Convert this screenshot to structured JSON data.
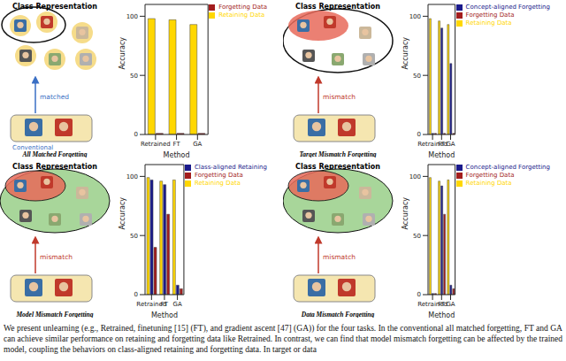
{
  "chart_data": [
    {
      "type": "bar",
      "categories": [
        "Retrained",
        "FT",
        "GA"
      ],
      "x_label": "Method",
      "y_label": "Accuracy",
      "ylim": [
        0,
        110
      ],
      "yticks": [
        0,
        50,
        100
      ],
      "legend": "upper right",
      "series": [
        {
          "name": "Retaining Data",
          "color": "#ffd700",
          "values": [
            98,
            97,
            93
          ]
        },
        {
          "name": "Forgetting Data",
          "color": "#a31d1d",
          "values": [
            1,
            1,
            1
          ]
        }
      ]
    },
    {
      "type": "bar",
      "categories": [
        "Retrained",
        "FT",
        "GA"
      ],
      "x_label": "Method",
      "y_label": "Accuracy",
      "ylim": [
        0,
        110
      ],
      "yticks": [
        0,
        50,
        100
      ],
      "legend": "upper right",
      "series": [
        {
          "name": "Retaining Data",
          "color": "#ffd700",
          "values": [
            98,
            96,
            93
          ]
        },
        {
          "name": "Concept-aligned Forgetting",
          "color": "#1a1a8c",
          "values": [
            1,
            90,
            60
          ]
        },
        {
          "name": "Forgetting Data",
          "color": "#a31d1d",
          "values": [
            1,
            1,
            1
          ]
        }
      ]
    },
    {
      "type": "bar",
      "categories": [
        "Retrained",
        "FT",
        "GA"
      ],
      "x_label": "Method",
      "y_label": "Accuracy",
      "ylim": [
        0,
        110
      ],
      "yticks": [
        0,
        50,
        100
      ],
      "legend": "upper right",
      "series": [
        {
          "name": "Retaining Data",
          "color": "#ffd700",
          "values": [
            99,
            96,
            97
          ]
        },
        {
          "name": "Class-aligned Retaining",
          "color": "#1a1a8c",
          "values": [
            97,
            93,
            8
          ]
        },
        {
          "name": "Forgetting Data",
          "color": "#a31d1d",
          "values": [
            40,
            68,
            5
          ]
        }
      ]
    },
    {
      "type": "bar",
      "categories": [
        "Retrained",
        "FT",
        "GA"
      ],
      "x_label": "Method",
      "y_label": "Accuracy",
      "ylim": [
        0,
        110
      ],
      "yticks": [
        0,
        50,
        100
      ],
      "legend": "upper right",
      "series": [
        {
          "name": "Retaining Data",
          "color": "#ffd700",
          "values": [
            99,
            96,
            97
          ]
        },
        {
          "name": "Concept-aligned Forgetting",
          "color": "#1a1a8c",
          "values": [
            1,
            92,
            8
          ]
        },
        {
          "name": "Forgetting Data",
          "color": "#a31d1d",
          "values": [
            1,
            68,
            5
          ]
        }
      ]
    }
  ],
  "diagrams": [
    {
      "title": "Class Representation",
      "relation": "matched",
      "label": "Conventional",
      "name": "All Matched Forgetting"
    },
    {
      "title": "Class Representation",
      "relation": "mismatch",
      "name": "Target Mismatch Forgetting"
    },
    {
      "title": "Class Representation",
      "relation": "mismatch",
      "name": "Model Mismatch Forgetting"
    },
    {
      "title": "Class Representation",
      "relation": "mismatch",
      "name": "Data Mismatch Forgetting"
    }
  ],
  "caption": "We present unlearning (e.g., Retrained, finetuning [15] (FT), and gradient ascent [47] (GA)) for the four tasks. In the conventional all matched forgetting, FT and GA can achieve similar performance on retaining and forgetting data like Retrained. In contrast, we can find that model mismatch forgetting can be affected by the trained model, coupling the behaviors on class-aligned retaining and forgetting data. In target or data"
}
